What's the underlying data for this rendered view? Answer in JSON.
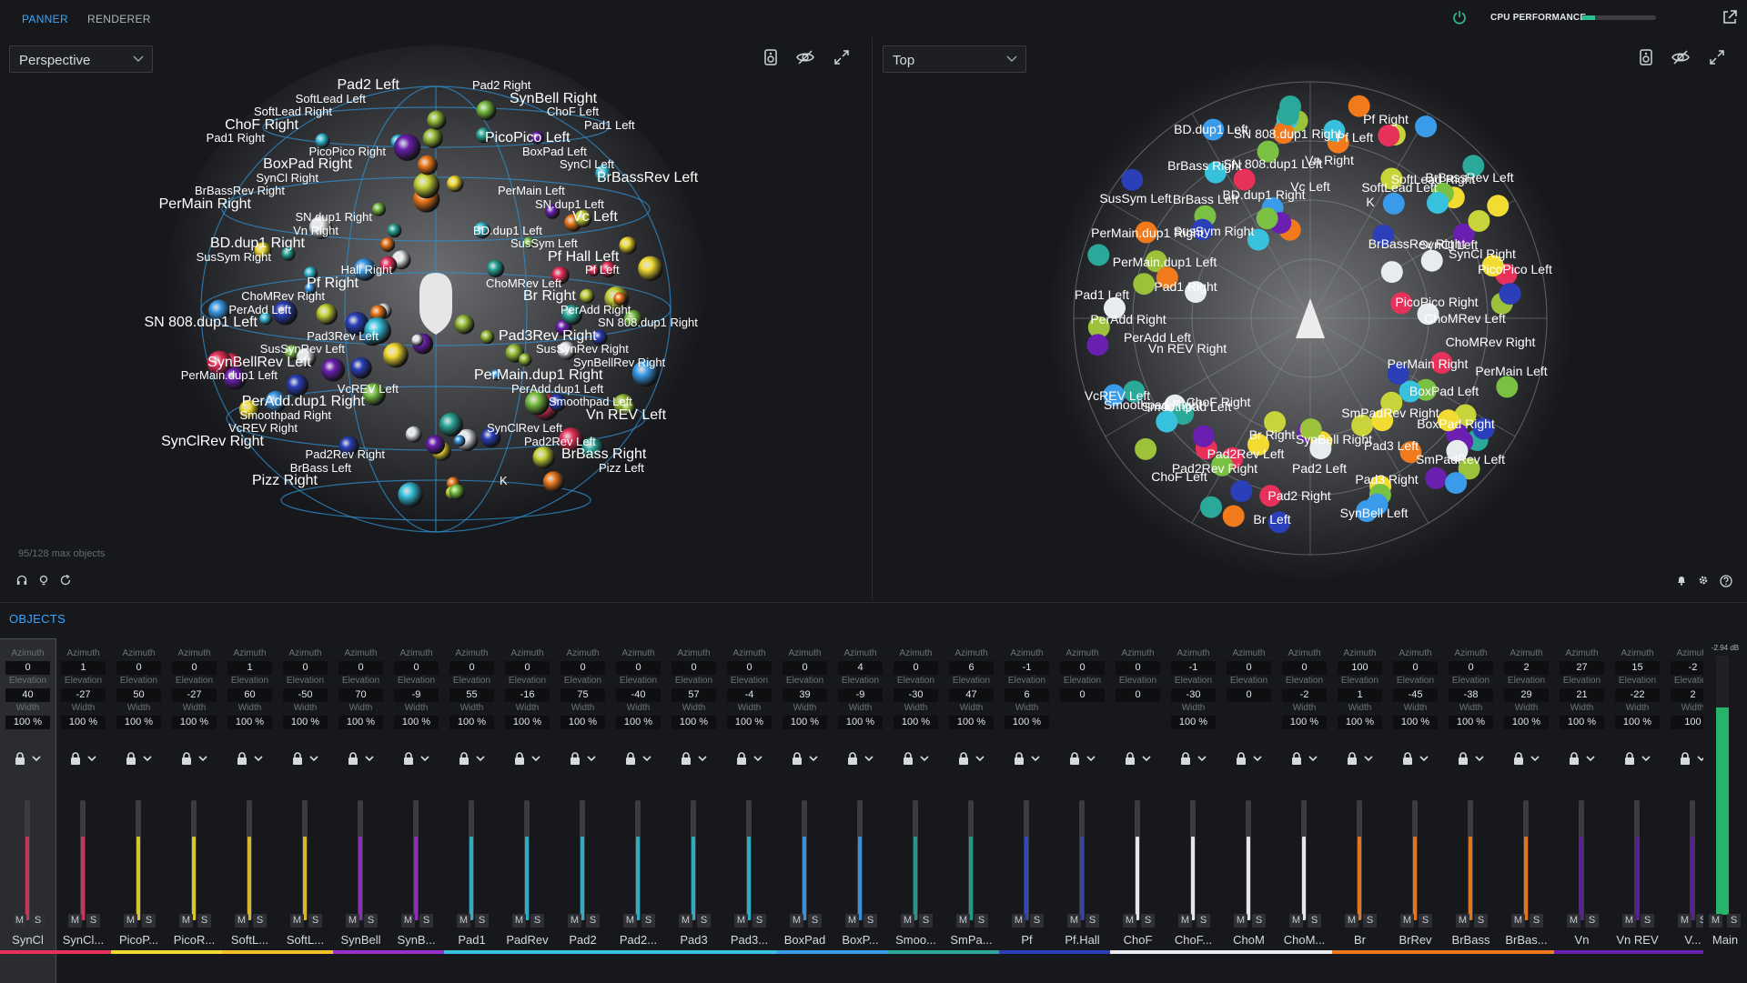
{
  "tabs": {
    "panner": "PANNER",
    "renderer": "RENDERER"
  },
  "cpu": {
    "label": "CPU PERFORMANCE",
    "level": 0.18,
    "color": "#2fbf8c"
  },
  "accent": "#3aa6ff",
  "views": {
    "left": {
      "selected": "Perspective"
    },
    "right": {
      "selected": "Top"
    }
  },
  "object_count": "95/128 max objects",
  "objects_title": "OBJECTS",
  "field_labels": {
    "azimuth": "Azimuth",
    "elevation": "Elevation",
    "width": "Width"
  },
  "perspective_labels": [
    "Pad2 Left",
    "Pad2 Right",
    "SoftLead Left",
    "SynBell Right",
    "SoftLead Right",
    "ChoF Left",
    "ChoF Right",
    "Pad1 Left",
    "Pad1 Right",
    "PicoPico Left",
    "PicoPico Right",
    "BoxPad Left",
    "BoxPad Right",
    "SynCl Left",
    "SynCl Right",
    "BrBassRev Left",
    "BrBassRev Right",
    "PerMain Left",
    "PerMain Right",
    "SN.dup1 Left",
    "SN.dup1 Right",
    "Vc Left",
    "Vn Right",
    "BD.dup1 Left",
    "BD.dup1 Right",
    "SusSym Left",
    "SusSym Right",
    "Pf Hall Left",
    "Hall Right",
    "Pf Left",
    "Pf Right",
    "ChoMRev Left",
    "ChoMRev Right",
    "Br Right",
    "PerAdd Left",
    "PerAdd Right",
    "SN 808.dup1 Left",
    "SN 808.dup1 Right",
    "Pad3Rev Left",
    "Pad3Rev Right",
    "SusSynRev Left",
    "SusSynRev Right",
    "SynBellRev Left",
    "SynBellRev Right",
    "PerMain.dup1 Left",
    "PerMain.dup1 Right",
    "VcREV Left",
    "PerAdd.dup1 Left",
    "PerAdd.dup1 Right",
    "Smoothpad Left",
    "Smoothpad Right",
    "Vn REV Left",
    "VcREV Right",
    "SynClRev Left",
    "SynClRev Right",
    "Pad2Rev Left",
    "Pad2Rev Right",
    "BrBass Right",
    "BrBass Left",
    "Pizz Left",
    "Pizz Right",
    "K"
  ],
  "top_labels": [
    "Vc Left",
    "Vn Right",
    "Pf Left",
    "Pf Right",
    "K",
    "SoftLead Left",
    "SoftLead Right",
    "BrBassRev Left",
    "BrBassRev Right",
    "SynCl Left",
    "SynCl Right",
    "PicoPico Left",
    "PicoPico Right",
    "ChoMRev Left",
    "ChoMRev Right",
    "PerMain Left",
    "PerMain Right",
    "BoxPad Left",
    "BoxPad Right",
    "SmPadRev Left",
    "SmPadRev Right",
    "Pad3 Left",
    "Pad3 Right",
    "SynBell Left",
    "SynBell Right",
    "Pad2 Left",
    "Pad2 Right",
    "Br Left",
    "Br Right",
    "Pad2Rev Left",
    "Pad2Rev Right",
    "ChoF Left",
    "ChoF Right",
    "Smoothpad Left",
    "Smoothpad Right",
    "VcREV Left",
    "Vn REV Right",
    "PerAdd Left",
    "PerAdd Right",
    "Pad1 Left",
    "Pad1 Right",
    "PerMain.dup1 Left",
    "PerMain.dup1 Right",
    "SusSym Left",
    "SusSym Right",
    "BrBass Left",
    "BrBass Right",
    "BD.dup1 Left",
    "BD.dup1 Right",
    "SN 808.dup1 Left",
    "SN 808.dup1 Right"
  ],
  "objects": [
    {
      "name": "SynCl",
      "az": "0",
      "el": "40",
      "w": "100 %",
      "color": "#e8315a",
      "fill": "#c8355a"
    },
    {
      "name": "SynCl...",
      "az": "1",
      "el": "-27",
      "w": "100 %",
      "color": "#e8315a",
      "fill": "#c8355a"
    },
    {
      "name": "PicoP...",
      "az": "0",
      "el": "50",
      "w": "100 %",
      "color": "#f2dc32",
      "fill": "#d6c72b"
    },
    {
      "name": "PicoR...",
      "az": "0",
      "el": "-27",
      "w": "100 %",
      "color": "#f2dc32",
      "fill": "#d6c72b"
    },
    {
      "name": "SoftL...",
      "az": "1",
      "el": "60",
      "w": "100 %",
      "color": "#f2c12a",
      "fill": "#d9b52a"
    },
    {
      "name": "SoftL...",
      "az": "0",
      "el": "-50",
      "w": "100 %",
      "color": "#f2c12a",
      "fill": "#d9b52a"
    },
    {
      "name": "SynBell",
      "az": "0",
      "el": "70",
      "w": "100 %",
      "color": "#9b2fc9",
      "fill": "#8f2dba"
    },
    {
      "name": "SynB...",
      "az": "0",
      "el": "-9",
      "w": "100 %",
      "color": "#9b2fc9",
      "fill": "#8f2dba"
    },
    {
      "name": "Pad1",
      "az": "0",
      "el": "55",
      "w": "100 %",
      "color": "#38c1dc",
      "fill": "#31aac2"
    },
    {
      "name": "PadRev",
      "az": "0",
      "el": "-16",
      "w": "100 %",
      "color": "#38c1dc",
      "fill": "#31aac2"
    },
    {
      "name": "Pad2",
      "az": "0",
      "el": "75",
      "w": "100 %",
      "color": "#38c1dc",
      "fill": "#31aac2"
    },
    {
      "name": "Pad2...",
      "az": "0",
      "el": "-40",
      "w": "100 %",
      "color": "#38c1dc",
      "fill": "#31aac2"
    },
    {
      "name": "Pad3",
      "az": "0",
      "el": "57",
      "w": "100 %",
      "color": "#38c1dc",
      "fill": "#31aac2"
    },
    {
      "name": "Pad3...",
      "az": "0",
      "el": "-4",
      "w": "100 %",
      "color": "#38c1dc",
      "fill": "#31aac2"
    },
    {
      "name": "BoxPad",
      "az": "0",
      "el": "39",
      "w": "100 %",
      "color": "#3a9bea",
      "fill": "#3a8fd6"
    },
    {
      "name": "BoxP...",
      "az": "4",
      "el": "-9",
      "w": "100 %",
      "color": "#3a9bea",
      "fill": "#3a8fd6"
    },
    {
      "name": "Smoo...",
      "az": "0",
      "el": "-30",
      "w": "100 %",
      "color": "#2aa89a",
      "fill": "#27968a"
    },
    {
      "name": "SmPa...",
      "az": "6",
      "el": "47",
      "w": "100 %",
      "color": "#2aa89a",
      "fill": "#27968a"
    },
    {
      "name": "Pf",
      "az": "-1",
      "el": "6",
      "w": "100 %",
      "color": "#2a3fb8",
      "fill": "#2e45bc"
    },
    {
      "name": "Pf.Hall",
      "az": "0",
      "el": "0",
      "w": "",
      "color": "#2a3fb8",
      "fill": "#3a43a0"
    },
    {
      "name": "ChoF",
      "az": "0",
      "el": "0",
      "w": "",
      "color": "#e9ecef",
      "fill": "#e4e6e9"
    },
    {
      "name": "ChoF...",
      "az": "-1",
      "el": "-30",
      "w": "100 %",
      "color": "#e9ecef",
      "fill": "#e4e6e9"
    },
    {
      "name": "ChoM",
      "az": "0",
      "el": "0",
      "w": "",
      "color": "#e9ecef",
      "fill": "#e4e6e9"
    },
    {
      "name": "ChoM...",
      "az": "0",
      "el": "-2",
      "w": "100 %",
      "color": "#e9ecef",
      "fill": "#e4e6e9"
    },
    {
      "name": "Br",
      "az": "100",
      "el": "1",
      "w": "100 %",
      "color": "#f07a1c",
      "fill": "#e2761e"
    },
    {
      "name": "BrRev",
      "az": "0",
      "el": "-45",
      "w": "100 %",
      "color": "#f07a1c",
      "fill": "#e2761e"
    },
    {
      "name": "BrBass",
      "az": "0",
      "el": "-38",
      "w": "100 %",
      "color": "#f07a1c",
      "fill": "#e2761e"
    },
    {
      "name": "BrBas...",
      "az": "2",
      "el": "29",
      "w": "100 %",
      "color": "#f07a1c",
      "fill": "#e2761e"
    },
    {
      "name": "Vn",
      "az": "27",
      "el": "21",
      "w": "100 %",
      "color": "#6a1fb0",
      "fill": "#5a1f95"
    },
    {
      "name": "Vn REV",
      "az": "15",
      "el": "-22",
      "w": "100 %",
      "color": "#6a1fb0",
      "fill": "#5a1f95"
    },
    {
      "name": "V...",
      "az": "-2",
      "el": "2",
      "w": "100",
      "color": "#6a1fb0",
      "fill": "#5a1f95"
    }
  ],
  "buttons": {
    "mute": "M",
    "solo": "S"
  },
  "master": {
    "name": "Main",
    "db": "-2.94 dB",
    "level": 0.8,
    "color": "#27b36a"
  }
}
